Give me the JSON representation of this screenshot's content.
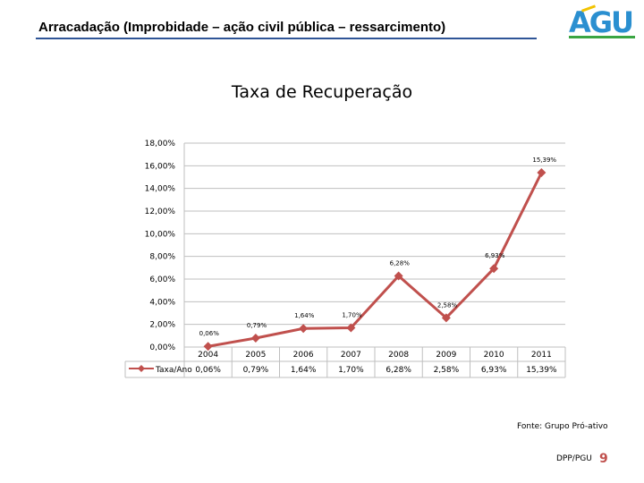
{
  "header": {
    "title": "Arracadação (Improbidade – ação civil pública – ressarcimento)"
  },
  "logo": {
    "text": "AGU"
  },
  "chart_title": "Taxa de Recuperação",
  "chart_data": {
    "type": "line",
    "title": "Taxa de Recuperação",
    "categories": [
      "2004",
      "2005",
      "2006",
      "2007",
      "2008",
      "2009",
      "2010",
      "2011"
    ],
    "series": [
      {
        "name": "Taxa/Ano",
        "values": [
          0.06,
          0.79,
          1.64,
          1.7,
          6.28,
          2.58,
          6.93,
          15.39
        ],
        "labels": [
          "0,06%",
          "0,79%",
          "1,64%",
          "1,70%",
          "6,28%",
          "2,58%",
          "6,93%",
          "15,39%"
        ]
      }
    ],
    "ylim": [
      0,
      18
    ],
    "yticks": [
      0,
      2,
      4,
      6,
      8,
      10,
      12,
      14,
      16,
      18
    ],
    "ytick_labels": [
      "0,00%",
      "2,00%",
      "4,00%",
      "6,00%",
      "8,00%",
      "10,00%",
      "12,00%",
      "14,00%",
      "16,00%",
      "18,00%"
    ],
    "grid": true,
    "legend": "data-table",
    "colors": {
      "line": "#c0504d",
      "grid": "#bfbfbf"
    }
  },
  "footer": {
    "source": "Fonte: Grupo Pró-ativo",
    "dept": "DPP/PGU",
    "page_number": "9"
  }
}
